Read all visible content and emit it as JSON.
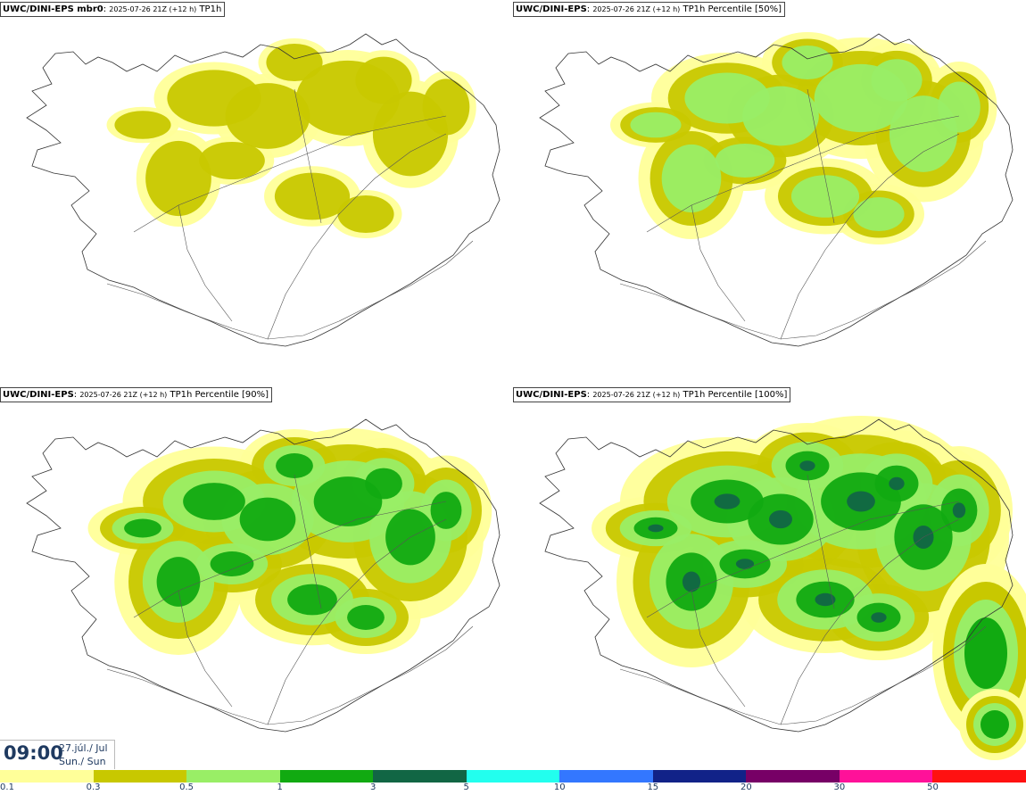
{
  "panels": [
    {
      "model": "UWC/DINI-EPS mbr0",
      "meta": "2025-07-26 21Z (+12 h)",
      "product": "TP1h",
      "intensity": 1
    },
    {
      "model": "UWC/DINI-EPS",
      "meta": "2025-07-26 21Z (+12 h)",
      "product": "TP1h Percentile [50%]",
      "intensity": 2
    },
    {
      "model": "UWC/DINI-EPS",
      "meta": "2025-07-26 21Z (+12 h)",
      "product": "TP1h Percentile [90%]",
      "intensity": 3
    },
    {
      "model": "UWC/DINI-EPS",
      "meta": "2025-07-26 21Z (+12 h)",
      "product": "TP1h Percentile [100%]",
      "intensity": 4
    }
  ],
  "time": {
    "clock": "09:00",
    "date_line1": "27.júl./ Jul",
    "date_line2": "Sun./ Sun"
  },
  "legend": {
    "colors": [
      "#ffff99",
      "#c8c800",
      "#99ee66",
      "#11aa11",
      "#116644",
      "#22ffee",
      "#3377ff",
      "#112288",
      "#770066",
      "#ff1199",
      "#ff1111"
    ],
    "labels": [
      "0.1",
      "0.3",
      "0.5",
      "1",
      "3",
      "5",
      "10",
      "15",
      "20",
      "30",
      "50"
    ]
  }
}
